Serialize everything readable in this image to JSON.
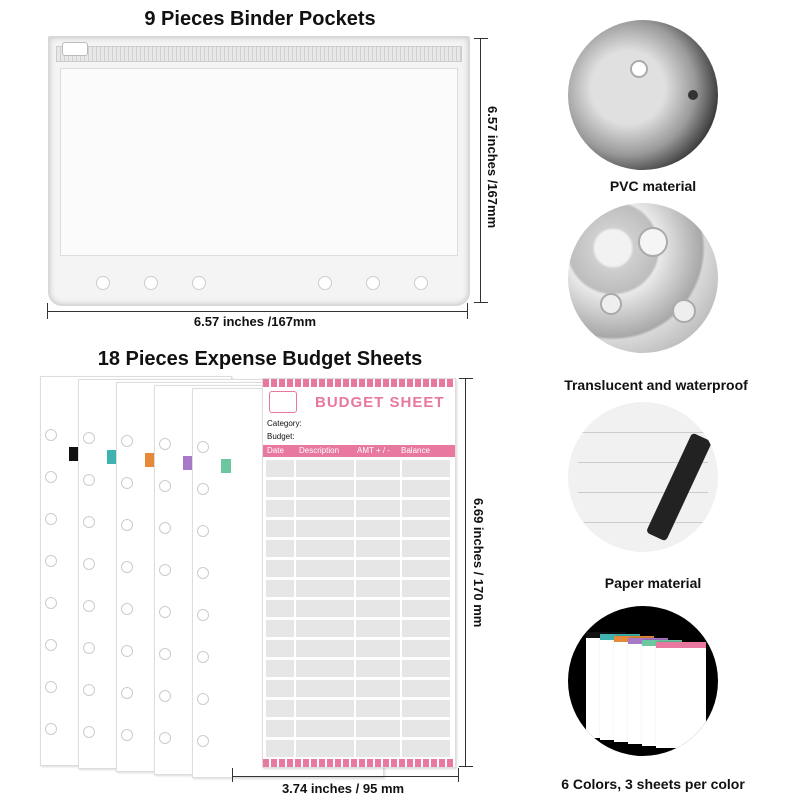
{
  "pockets": {
    "title": "9 Pieces Binder Pockets",
    "width_label": "6.57 inches /167mm",
    "height_label": "6.57 inches /167mm"
  },
  "sheets": {
    "title": "18 Pieces Expense Budget Sheets",
    "width_label": "3.74 inches / 95 mm",
    "height_label": "6.69 inches / 170 mm",
    "heading": "BUDGET SHEET",
    "category_label": "Category:",
    "budget_label": "Budget:",
    "columns": [
      "Date",
      "Description",
      "AMT + / -",
      "Balance"
    ],
    "colors": [
      "#111111",
      "#3fb3b0",
      "#e58a3a",
      "#a77ac8",
      "#6cc6a0",
      "#e8789f"
    ]
  },
  "features": [
    {
      "caption": "PVC material",
      "icon": "pvc-pocket-closeup"
    },
    {
      "caption": "Translucent and waterproof",
      "icon": "water-droplets"
    },
    {
      "caption": "Paper material",
      "icon": "pen-writing"
    },
    {
      "caption": "6 Colors, 3 sheets per color",
      "icon": "colored-sheets"
    }
  ]
}
